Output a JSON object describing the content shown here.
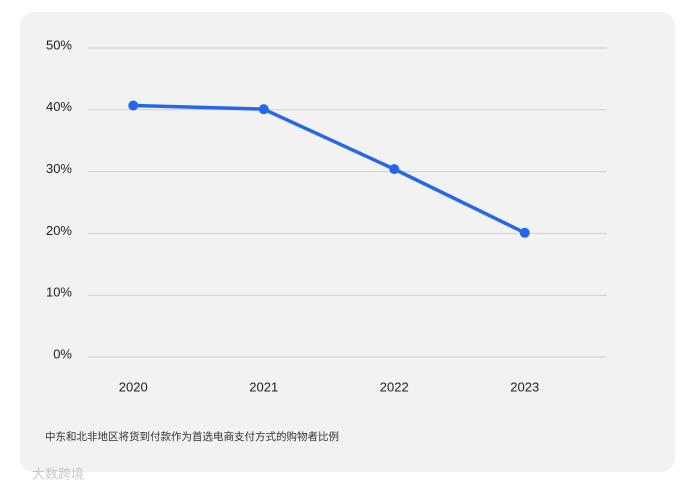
{
  "chart_data": {
    "type": "line",
    "categories": [
      "2020",
      "2021",
      "2022",
      "2023"
    ],
    "series": [
      {
        "name": null,
        "color": "#2567ec",
        "values": [
          40.7,
          40.1,
          30.4,
          20.1
        ]
      }
    ],
    "ylim": [
      0,
      50
    ],
    "yticks": [
      {
        "value": 0,
        "label": "0%"
      },
      {
        "value": 10,
        "label": "10%"
      },
      {
        "value": 20,
        "label": "20%"
      },
      {
        "value": 30,
        "label": "30%"
      },
      {
        "value": 40,
        "label": "40%"
      },
      {
        "value": 50,
        "label": "50%"
      }
    ],
    "grid": true,
    "caption": "中东和北非地区将货到付款作为首选电商支付方式的购物者比例",
    "watermark": "大数跨境"
  }
}
